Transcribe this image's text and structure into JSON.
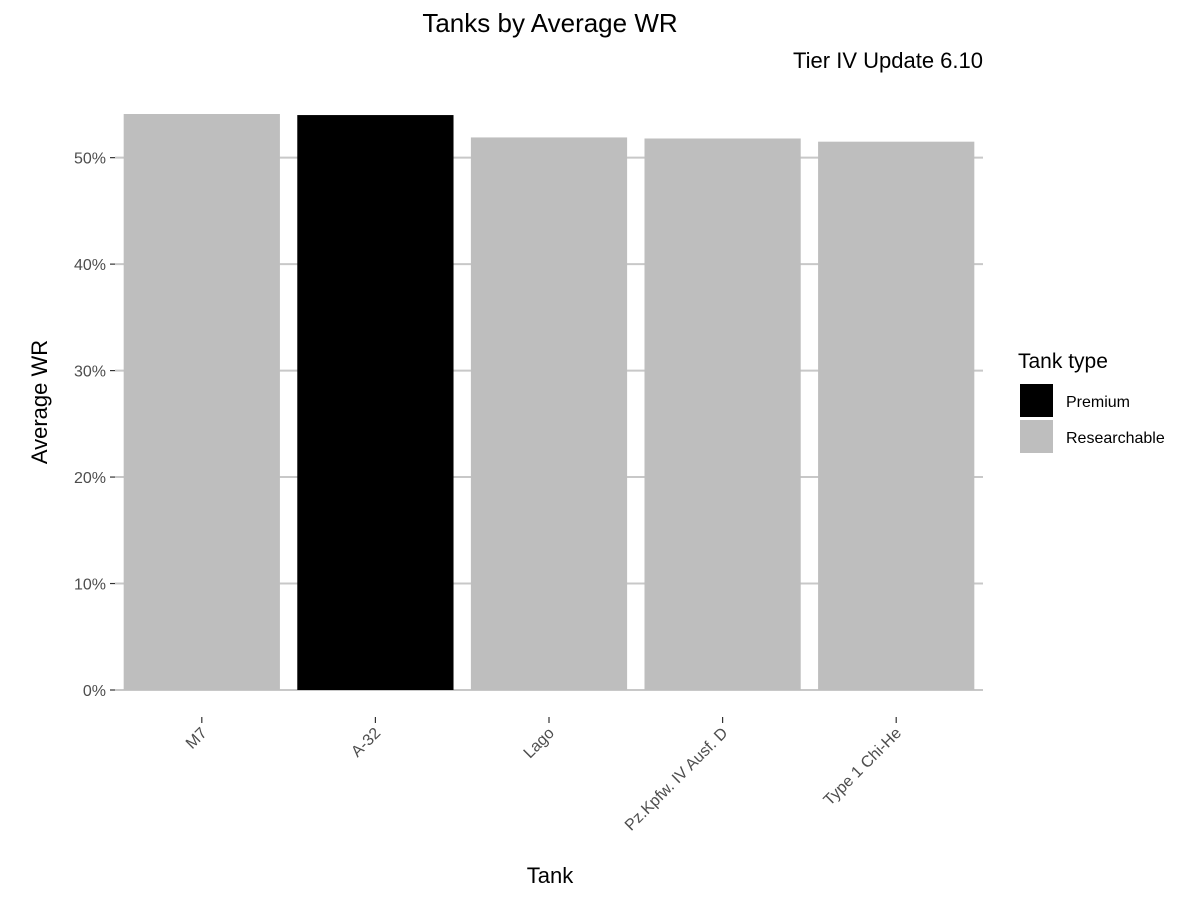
{
  "chart_data": {
    "type": "bar",
    "title": "Tanks by Average WR",
    "subtitle": "Tier IV Update 6.10",
    "xlabel": "Tank",
    "ylabel": "Average WR",
    "categories": [
      "M7",
      "A-32",
      "Lago",
      "Pz.Kpfw. IV Ausf. D",
      "Type 1 Chi-He"
    ],
    "values": [
      54.1,
      54.0,
      51.9,
      51.8,
      51.5
    ],
    "tank_type": [
      "Researchable",
      "Premium",
      "Researchable",
      "Researchable",
      "Researchable"
    ],
    "ylim": [
      0,
      54.1
    ],
    "yticks": [
      0,
      10,
      20,
      30,
      40,
      50
    ],
    "ytick_labels": [
      "0%",
      "10%",
      "20%",
      "30%",
      "40%",
      "50%"
    ],
    "grid": "horizontal major",
    "legend": {
      "title": "Tank type",
      "position": "right",
      "entries": [
        {
          "label": "Premium",
          "color": "#000000"
        },
        {
          "label": "Researchable",
          "color": "#bebebe"
        }
      ]
    }
  }
}
